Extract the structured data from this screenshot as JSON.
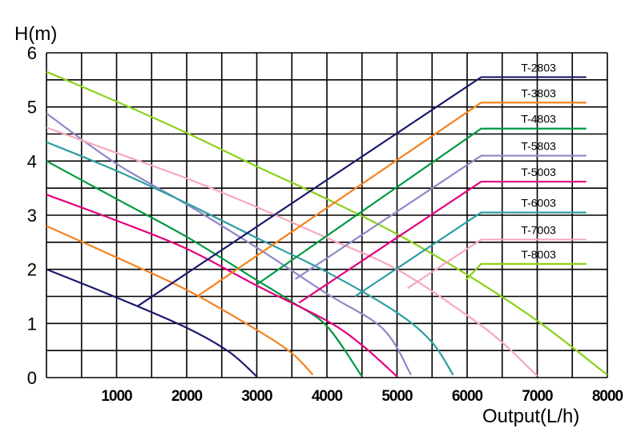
{
  "chart_data": {
    "type": "line",
    "ylabel": "H(m)",
    "xlabel": "Output(L/h)",
    "xlim": [
      0,
      8000
    ],
    "ylim": [
      0,
      6
    ],
    "x_ticks": [
      "1000",
      "2000",
      "3000",
      "4000",
      "5000",
      "6000",
      "7000",
      "8000"
    ],
    "y_ticks": [
      "0",
      "1",
      "2",
      "3",
      "4",
      "5",
      "6"
    ],
    "grid": true,
    "legend_placement": "right",
    "series": [
      {
        "name": "T-2803",
        "color": "#1a1a6e",
        "points": [
          [
            0,
            2.0
          ],
          [
            1000,
            1.48
          ],
          [
            2000,
            0.92
          ],
          [
            2600,
            0.48
          ],
          [
            3000,
            0.02
          ]
        ],
        "leader": [
          [
            1300,
            1.32
          ],
          [
            6200,
            5.55
          ],
          [
            7700,
            5.55
          ]
        ]
      },
      {
        "name": "T-3803",
        "color": "#f5821f",
        "points": [
          [
            0,
            2.8
          ],
          [
            1000,
            2.22
          ],
          [
            2000,
            1.62
          ],
          [
            3000,
            0.88
          ],
          [
            3500,
            0.45
          ],
          [
            3800,
            0.05
          ]
        ],
        "leader": [
          [
            2150,
            1.5
          ],
          [
            6200,
            5.08
          ],
          [
            7700,
            5.08
          ]
        ]
      },
      {
        "name": "T-4803",
        "color": "#009944",
        "points": [
          [
            0,
            4.0
          ],
          [
            1000,
            3.3
          ],
          [
            2000,
            2.6
          ],
          [
            3000,
            1.8
          ],
          [
            3500,
            1.4
          ],
          [
            4000,
            0.95
          ],
          [
            4500,
            0.02
          ]
        ],
        "leader": [
          [
            3000,
            1.72
          ],
          [
            6200,
            4.6
          ],
          [
            7700,
            4.6
          ]
        ]
      },
      {
        "name": "T-5803",
        "color": "#8f88c8",
        "points": [
          [
            0,
            4.88
          ],
          [
            1000,
            3.95
          ],
          [
            2000,
            3.2
          ],
          [
            3000,
            2.4
          ],
          [
            4000,
            1.55
          ],
          [
            4800,
            0.9
          ],
          [
            5200,
            0.05
          ]
        ],
        "leader": [
          [
            3550,
            1.82
          ],
          [
            6200,
            4.1
          ],
          [
            7700,
            4.1
          ]
        ]
      },
      {
        "name": "T-5003",
        "color": "#e3007e",
        "points": [
          [
            0,
            3.38
          ],
          [
            1000,
            2.9
          ],
          [
            2000,
            2.38
          ],
          [
            3000,
            1.7
          ],
          [
            4000,
            1.05
          ],
          [
            4500,
            0.6
          ],
          [
            5000,
            0.02
          ]
        ],
        "leader": [
          [
            3600,
            1.38
          ],
          [
            6200,
            3.62
          ],
          [
            7700,
            3.62
          ]
        ]
      },
      {
        "name": "T-6003",
        "color": "#2e9ea0",
        "points": [
          [
            0,
            4.35
          ],
          [
            1000,
            3.82
          ],
          [
            2000,
            3.22
          ],
          [
            3000,
            2.58
          ],
          [
            4000,
            1.95
          ],
          [
            5000,
            1.2
          ],
          [
            5500,
            0.65
          ],
          [
            5800,
            0.05
          ]
        ],
        "leader": [
          [
            4400,
            1.5
          ],
          [
            6200,
            3.05
          ],
          [
            7700,
            3.05
          ]
        ]
      },
      {
        "name": "T-7003",
        "color": "#f7a9bb",
        "points": [
          [
            0,
            4.62
          ],
          [
            1000,
            4.15
          ],
          [
            2000,
            3.68
          ],
          [
            3000,
            3.15
          ],
          [
            4000,
            2.58
          ],
          [
            5000,
            2.0
          ],
          [
            6000,
            1.15
          ],
          [
            6500,
            0.65
          ],
          [
            7000,
            0.03
          ]
        ],
        "leader": [
          [
            5150,
            1.65
          ],
          [
            6200,
            2.55
          ],
          [
            7700,
            2.55
          ]
        ]
      },
      {
        "name": "T-8003",
        "color": "#8cd11b",
        "points": [
          [
            0,
            5.65
          ],
          [
            1000,
            5.1
          ],
          [
            2000,
            4.52
          ],
          [
            3000,
            3.9
          ],
          [
            4000,
            3.3
          ],
          [
            5000,
            2.65
          ],
          [
            6000,
            1.9
          ],
          [
            7000,
            1.05
          ],
          [
            8000,
            0.05
          ]
        ],
        "leader": [
          [
            5980,
            1.8
          ],
          [
            6200,
            2.1
          ],
          [
            7700,
            2.1
          ]
        ]
      }
    ]
  }
}
